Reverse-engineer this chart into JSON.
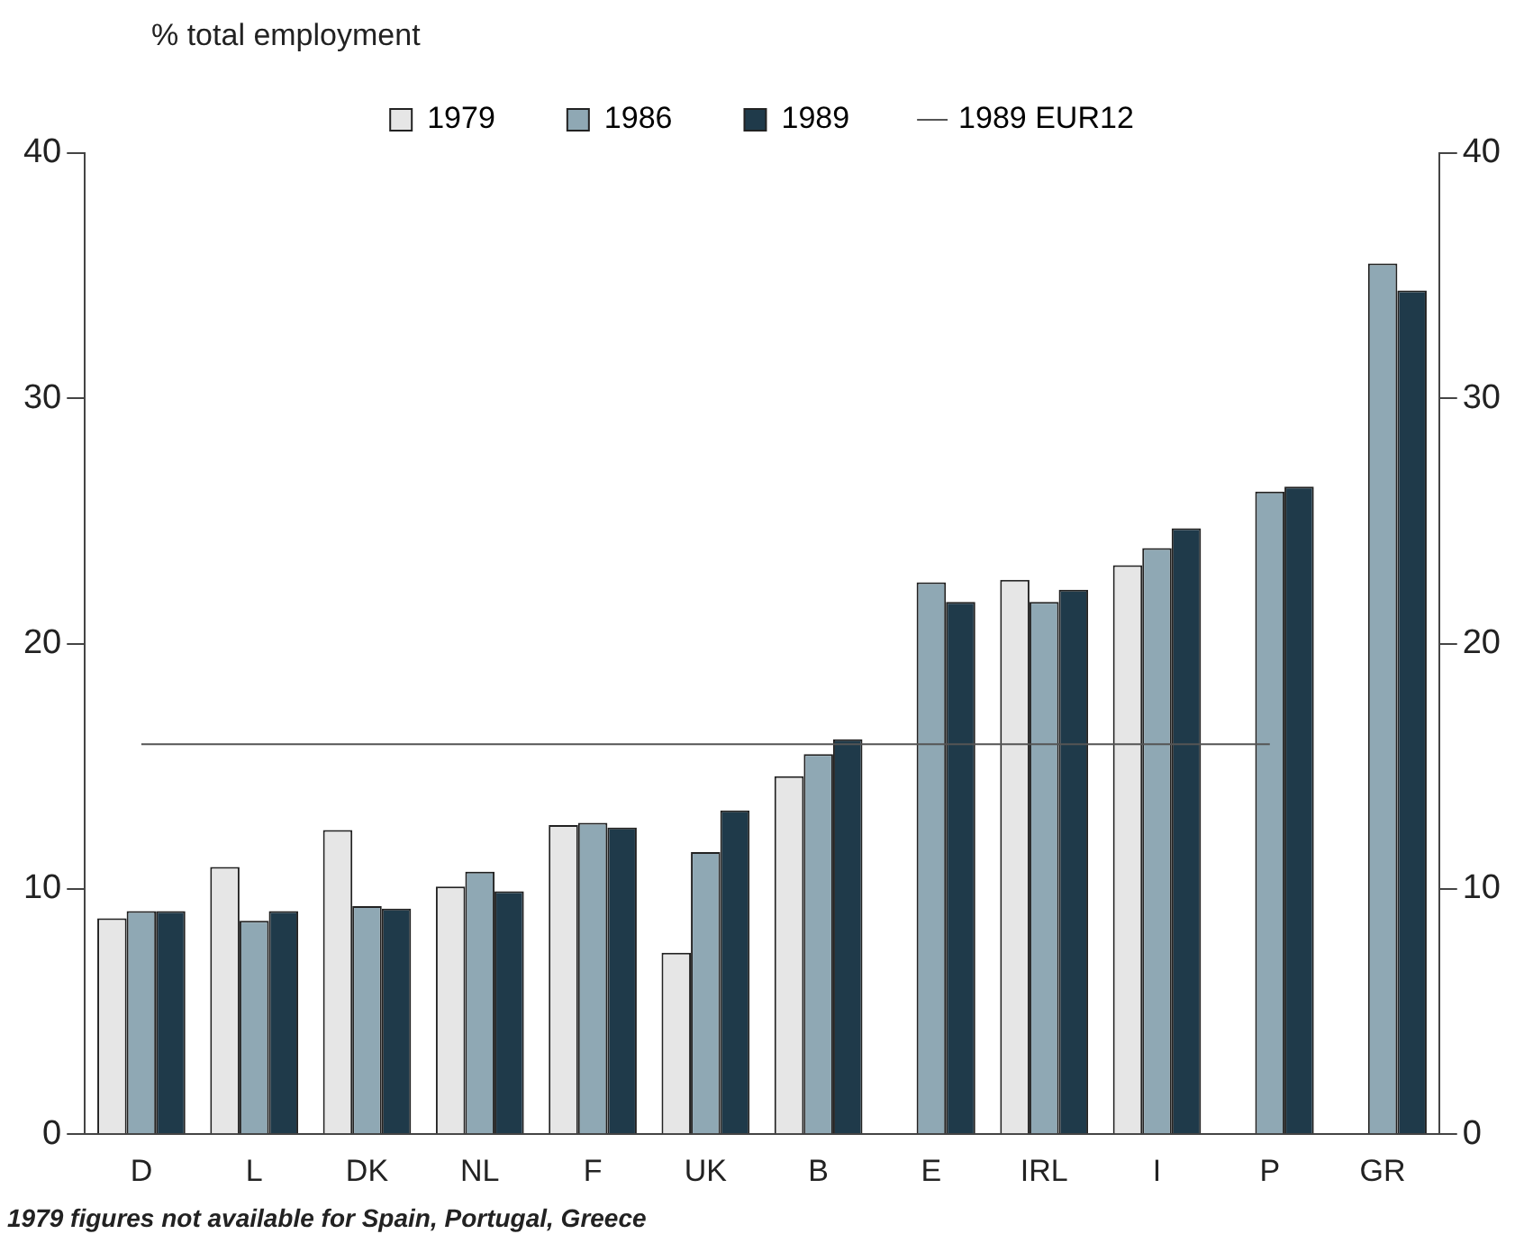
{
  "chart_data": {
    "type": "bar",
    "ylabel": "% total employment",
    "categories": [
      "D",
      "L",
      "DK",
      "NL",
      "F",
      "UK",
      "B",
      "E",
      "IRL",
      "I",
      "P",
      "GR"
    ],
    "series": [
      {
        "name": "1979",
        "color": "#e6e6e6",
        "values": [
          8.8,
          10.9,
          12.4,
          10.1,
          12.6,
          7.4,
          14.6,
          null,
          22.6,
          23.2,
          null,
          null
        ]
      },
      {
        "name": "1986",
        "color": "#8fa8b4",
        "values": [
          9.1,
          8.7,
          9.3,
          10.7,
          12.7,
          11.5,
          15.5,
          22.5,
          21.7,
          23.9,
          26.2,
          35.5
        ]
      },
      {
        "name": "1989",
        "color": "#1f3a4a",
        "values": [
          9.1,
          9.1,
          9.2,
          9.9,
          12.5,
          13.2,
          16.1,
          21.7,
          22.2,
          24.7,
          26.4,
          34.4
        ]
      },
      {
        "name": "1989 EUR12",
        "type": "line",
        "color": "#555555",
        "values": [
          15.9,
          15.9,
          15.9,
          15.9,
          15.9,
          15.9,
          15.9,
          15.9,
          15.9,
          15.9,
          15.9,
          null
        ]
      }
    ],
    "ylim": [
      0,
      40
    ],
    "yticks": [
      0,
      10,
      20,
      30,
      40
    ],
    "y2lim": [
      0,
      40
    ],
    "y2ticks": [
      0,
      10,
      20,
      30,
      40
    ],
    "grid": false,
    "legend": "top",
    "marker": "none",
    "annotations": [
      "1979 figures not available for Spain, Portugal, Greece"
    ]
  }
}
